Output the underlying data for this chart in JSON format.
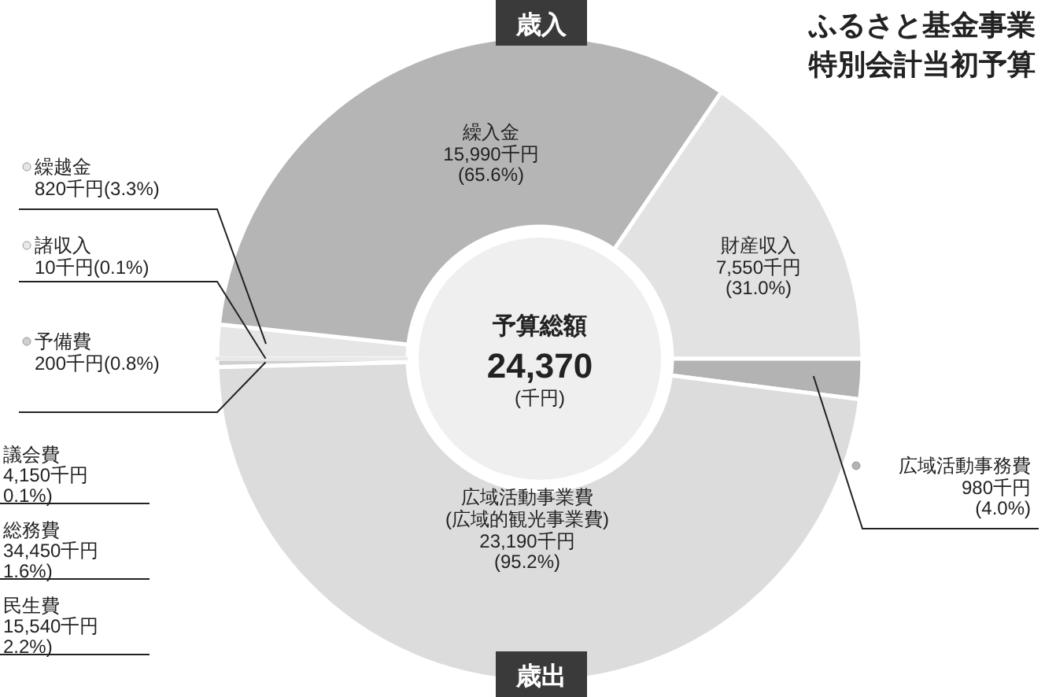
{
  "chart_data": {
    "type": "donut",
    "title": "ふるさと基金事業",
    "subtitle": "特別会計当初予算",
    "legend": "left",
    "categories": [
      "諸収入",
      "繰越金",
      "繰入金",
      "財産収入",
      "広域活動事務費",
      "広域活動事業費\n(広域的観光事業費)",
      "予備費"
    ],
    "values": [
      10,
      820,
      15990,
      7550,
      980,
      23190,
      200
    ],
    "colors": [
      "#e9e9e9",
      "#e6e6e6",
      "#b5b5b5",
      "#e2e2e2",
      "#b3b3b3",
      "#dcdcdc",
      "#cfcfcf"
    ],
    "value_labels": [
      "10千円(0.1%)",
      "820千円(3.3%)",
      "15,990千円\n(65.6%)",
      "7,550千円\n(31.0%)",
      "980千円\n(4.0%)",
      "23,190千円\n(95.2%)",
      "200千円(0.8%)"
    ],
    "annotations": [
      "歳入",
      "歳出",
      "予算総額",
      "24,370",
      "(千円)",
      "議会費\n4,150千円\n0.1%)",
      "総務費\n34,450千円\n1.6%)",
      "民生費\n15,540千円\n2.2%)"
    ]
  }
}
